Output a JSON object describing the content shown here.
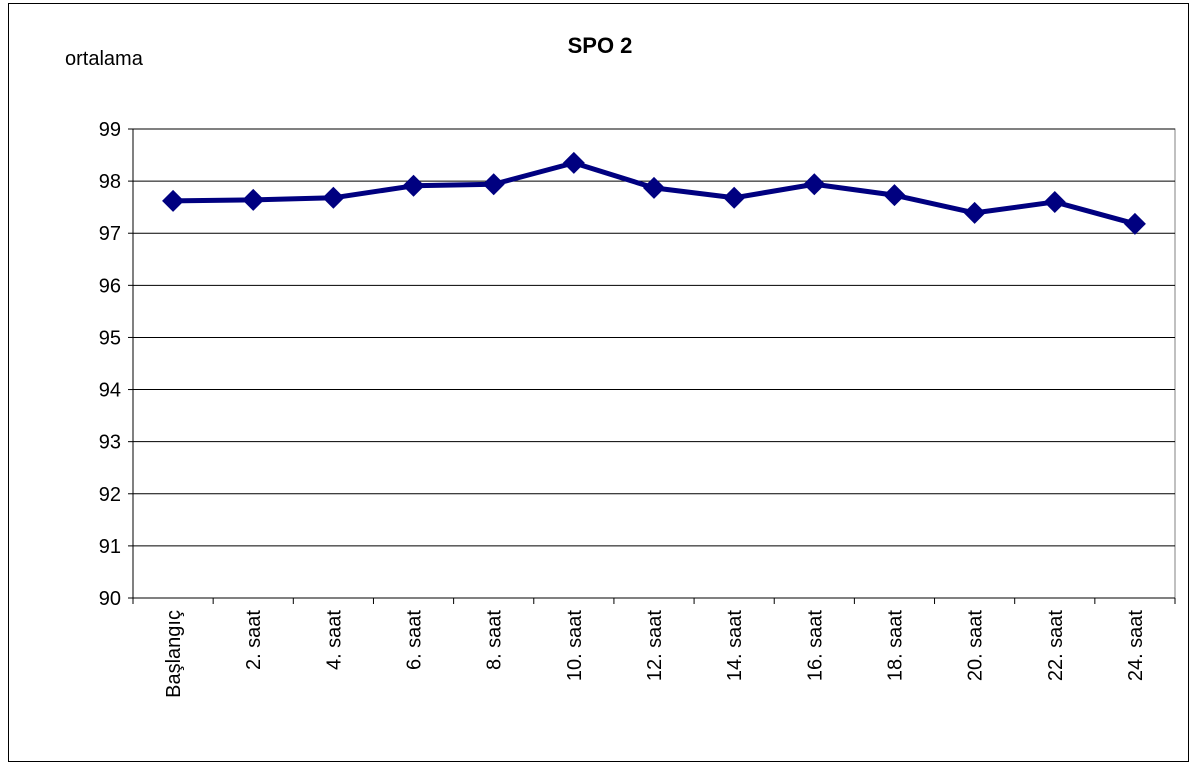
{
  "chart_data": {
    "type": "line",
    "title": "SPO 2",
    "y_label": "ortalama",
    "categories": [
      "Başlangıç",
      "2. saat",
      "4. saat",
      "6. saat",
      "8. saat",
      "10. saat",
      "12. saat",
      "14. saat",
      "16. saat",
      "18. saat",
      "20. saat",
      "22. saat",
      "24. saat"
    ],
    "series": [
      {
        "name": "SPO 2",
        "color": "#000080",
        "values": [
          97.62,
          97.64,
          97.68,
          97.91,
          97.94,
          98.35,
          97.87,
          97.68,
          97.94,
          97.73,
          97.39,
          97.6,
          97.18
        ]
      }
    ],
    "ylim": [
      90,
      99
    ],
    "yticks": [
      90,
      91,
      92,
      93,
      94,
      95,
      96,
      97,
      98,
      99
    ],
    "grid": true
  }
}
